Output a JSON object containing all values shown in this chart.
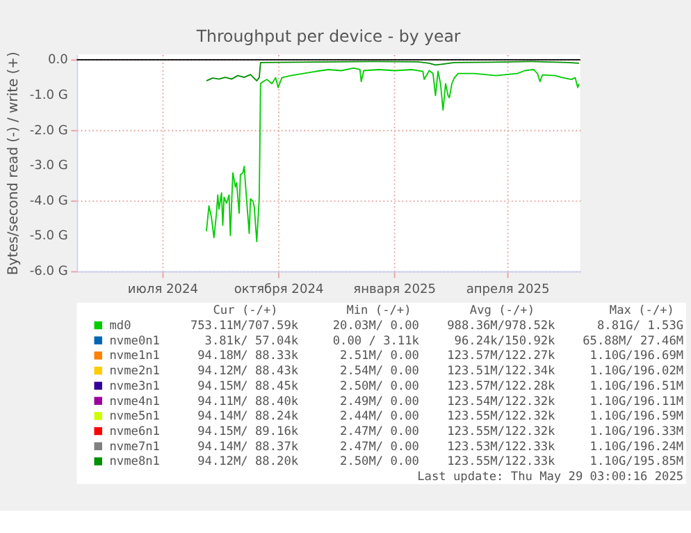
{
  "chart_data": {
    "type": "line",
    "title": "Throughput per device - by year",
    "ylabel": "Bytes/second read (-) / write (+)",
    "xlim": [
      "2024-04-24",
      "2025-05-29"
    ],
    "xticks": [
      {
        "value": "2024-07-01",
        "label": "июля 2024"
      },
      {
        "value": "2024-10-01",
        "label": "октября 2024"
      },
      {
        "value": "2025-01-01",
        "label": "января 2025"
      },
      {
        "value": "2025-04-01",
        "label": "апреля 2025"
      }
    ],
    "ylim": [
      -6,
      0.15
    ],
    "yticks": [
      {
        "value": 0,
        "label": "0.0"
      },
      {
        "value": -1,
        "label": "-1.0 G"
      },
      {
        "value": -2,
        "label": "-2.0 G"
      },
      {
        "value": -3,
        "label": "-3.0 G"
      },
      {
        "value": -4,
        "label": "-4.0 G"
      },
      {
        "value": -5,
        "label": "-5.0 G"
      },
      {
        "value": -6,
        "label": "-6.0 G"
      }
    ],
    "grid": true,
    "legend": "bottom",
    "marker": "none",
    "line_style": "solid",
    "ref_lines": [
      {
        "axis": "y",
        "value": 0,
        "color": "#000000"
      }
    ],
    "series": [
      {
        "name": "md0",
        "color": "#00cc00",
        "x": [
          "2024-08-05",
          "2024-08-07",
          "2024-08-09",
          "2024-08-11",
          "2024-08-13",
          "2024-08-14",
          "2024-08-15",
          "2024-08-17",
          "2024-08-18",
          "2024-08-19",
          "2024-08-21",
          "2024-08-23",
          "2024-08-24",
          "2024-08-26",
          "2024-08-28",
          "2024-08-29",
          "2024-08-31",
          "2024-09-01",
          "2024-09-03",
          "2024-09-04",
          "2024-09-06",
          "2024-09-08",
          "2024-09-09",
          "2024-09-11",
          "2024-09-12",
          "2024-09-14",
          "2024-09-16",
          "2024-09-17",
          "2024-09-19",
          "2024-09-22",
          "2024-09-26",
          "2024-09-29",
          "2024-10-01",
          "2024-10-04",
          "2024-10-11",
          "2024-10-21",
          "2024-10-31",
          "2024-11-10",
          "2024-11-20",
          "2024-11-30",
          "2024-12-05",
          "2024-12-06",
          "2024-12-08",
          "2024-12-20",
          "2025-01-02",
          "2025-01-15",
          "2025-01-24",
          "2025-01-25",
          "2025-01-29",
          "2025-02-01",
          "2025-02-03",
          "2025-02-05",
          "2025-02-07",
          "2025-02-09",
          "2025-02-11",
          "2025-02-13",
          "2025-02-14",
          "2025-02-16",
          "2025-02-18",
          "2025-02-21",
          "2025-03-06",
          "2025-03-23",
          "2025-04-09",
          "2025-04-15",
          "2025-04-22",
          "2025-04-25",
          "2025-04-27",
          "2025-04-29",
          "2025-05-09",
          "2025-05-15",
          "2025-05-22",
          "2025-05-25",
          "2025-05-27",
          "2025-05-28"
        ],
        "values": [
          -4.87,
          -4.15,
          -4.47,
          -5.05,
          -4.36,
          -3.84,
          -4.24,
          -3.78,
          -4.7,
          -3.9,
          -4.07,
          -3.84,
          -4.99,
          -3.21,
          -3.61,
          -3.49,
          -4.36,
          -3.26,
          -3.21,
          -3.03,
          -4.01,
          -4.93,
          -3.95,
          -4.01,
          -4.18,
          -5.16,
          -3.9,
          -0.68,
          -0.62,
          -0.56,
          -0.68,
          -0.51,
          -0.79,
          -0.51,
          -0.45,
          -0.39,
          -0.33,
          -0.28,
          -0.31,
          -0.24,
          -0.28,
          -0.62,
          -0.31,
          -0.28,
          -0.31,
          -0.28,
          -0.33,
          -0.56,
          -0.31,
          -0.39,
          -1.02,
          -0.33,
          -0.68,
          -1.43,
          -0.68,
          -1.02,
          -1.08,
          -0.68,
          -0.51,
          -0.39,
          -0.39,
          -0.45,
          -0.39,
          -0.31,
          -0.28,
          -0.39,
          -0.62,
          -0.43,
          -0.45,
          -0.51,
          -0.56,
          -0.51,
          -0.79,
          -0.68
        ]
      },
      {
        "name": "nvme0n1",
        "color": "#0066b3"
      },
      {
        "name": "nvme1n1",
        "color": "#ff8000"
      },
      {
        "name": "nvme2n1",
        "color": "#ffcc00"
      },
      {
        "name": "nvme3n1",
        "color": "#330099"
      },
      {
        "name": "nvme4n1",
        "color": "#990099"
      },
      {
        "name": "nvme5n1",
        "color": "#ccff00"
      },
      {
        "name": "nvme6n1",
        "color": "#ff0000"
      },
      {
        "name": "nvme7n1",
        "color": "#808080"
      },
      {
        "name": "nvme8n1",
        "color": "#008f00",
        "x": [
          "2024-08-05",
          "2024-08-10",
          "2024-08-15",
          "2024-08-20",
          "2024-08-25",
          "2024-08-30",
          "2024-09-04",
          "2024-09-09",
          "2024-09-14",
          "2024-09-16",
          "2024-09-17",
          "2024-10-15",
          "2024-11-15",
          "2024-12-15",
          "2025-01-20",
          "2025-01-29",
          "2025-02-03",
          "2025-02-10",
          "2025-02-18",
          "2025-03-20",
          "2025-04-20",
          "2025-05-20",
          "2025-05-28"
        ],
        "values": [
          -0.6,
          -0.52,
          -0.55,
          -0.5,
          -0.55,
          -0.45,
          -0.5,
          -0.42,
          -0.6,
          -0.5,
          -0.08,
          -0.07,
          -0.06,
          -0.05,
          -0.06,
          -0.1,
          -0.15,
          -0.12,
          -0.08,
          -0.07,
          -0.05,
          -0.08,
          -0.1
        ]
      }
    ],
    "annotations": [
      "Cur (-/+)",
      "Min (-/+)",
      "Avg (-/+)",
      "Max (-/+)",
      "753.11M/707.59k",
      "20.03M/  0.00",
      "988.36M/978.52k",
      "8.81G/  1.53G",
      "3.81k/ 57.04k",
      "0.00 /  3.11k",
      "96.24k/150.92k",
      "65.88M/ 27.46M",
      "94.18M/ 88.33k",
      "2.51M/  0.00",
      "123.57M/122.27k",
      "1.10G/196.69M",
      "94.12M/ 88.43k",
      "2.54M/  0.00",
      "123.51M/122.34k",
      "1.10G/196.02M",
      "94.15M/ 88.45k",
      "2.50M/  0.00",
      "123.57M/122.28k",
      "1.10G/196.51M",
      "94.11M/ 88.40k",
      "2.49M/  0.00",
      "123.54M/122.32k",
      "1.10G/196.11M",
      "94.14M/ 88.24k",
      "2.44M/  0.00",
      "123.55M/122.32k",
      "1.10G/196.59M",
      "94.15M/ 89.16k",
      "2.47M/  0.00",
      "123.55M/122.32k",
      "1.10G/196.33M",
      "94.14M/ 88.37k",
      "2.47M/  0.00",
      "123.53M/122.33k",
      "1.10G/196.24M",
      "94.12M/ 88.20k",
      "2.50M/  0.00",
      "123.55M/122.33k",
      "1.10G/195.85M",
      "Last update: Thu May 29 03:00:16 2025"
    ]
  }
}
